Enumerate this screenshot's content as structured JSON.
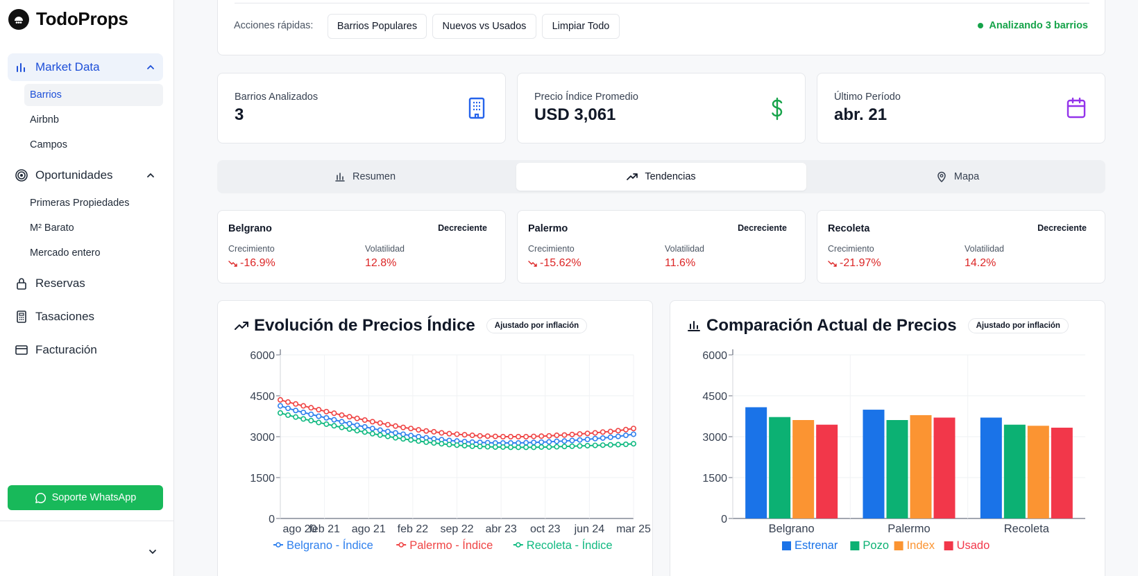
{
  "app": {
    "name": "TodoProps"
  },
  "sidebar": {
    "groups": [
      {
        "label": "Market Data",
        "items": [
          "Barrios",
          "Airbnb",
          "Campos"
        ]
      },
      {
        "label": "Oportunidades",
        "items": [
          "Primeras Propiedades",
          "M² Barato",
          "Mercado entero"
        ]
      },
      {
        "label": "Reservas"
      },
      {
        "label": "Tasaciones"
      },
      {
        "label": "Facturación"
      }
    ],
    "whatsapp_label": "Soporte WhatsApp"
  },
  "quick_actions": {
    "label": "Acciones rápidas:",
    "buttons": [
      "Barrios Populares",
      "Nuevos vs Usados",
      "Limpiar Todo"
    ],
    "status": "Analizando 3 barrios"
  },
  "stats": [
    {
      "label": "Barrios Analizados",
      "value": "3",
      "icon": "building-icon",
      "color": "#2563eb"
    },
    {
      "label": "Precio Índice Promedio",
      "value": "USD 3,061",
      "icon": "dollar-icon",
      "color": "#16a34a"
    },
    {
      "label": "Último Período",
      "value": "abr. 21",
      "icon": "calendar-icon",
      "color": "#9333ea"
    }
  ],
  "tabs": [
    {
      "label": "Resumen",
      "icon": "bar-chart-icon"
    },
    {
      "label": "Tendencias",
      "icon": "trending-up-icon",
      "active": true
    },
    {
      "label": "Mapa",
      "icon": "map-pin-icon"
    }
  ],
  "trends": [
    {
      "name": "Belgrano",
      "status": "Decreciente",
      "growth_label": "Crecimiento",
      "growth": "-16.9%",
      "vol_label": "Volatilidad",
      "volatility": "12.8%"
    },
    {
      "name": "Palermo",
      "status": "Decreciente",
      "growth_label": "Crecimiento",
      "growth": "-15.62%",
      "vol_label": "Volatilidad",
      "volatility": "11.6%"
    },
    {
      "name": "Recoleta",
      "status": "Decreciente",
      "growth_label": "Crecimiento",
      "growth": "-21.97%",
      "vol_label": "Volatilidad",
      "volatility": "14.2%"
    }
  ],
  "charts": {
    "line_title": "Evolución de Precios Índice",
    "bar_title": "Comparación Actual de Precios",
    "badge": "Ajustado por inflación"
  },
  "chart_data": [
    {
      "type": "line",
      "title": "Evolución de Precios Índice",
      "ylim": [
        0,
        6000
      ],
      "yticks": [
        0,
        1500,
        3000,
        4500,
        6000
      ],
      "xticks": [
        "ago 20",
        "feb 21",
        "ago 21",
        "feb 22",
        "sep 22",
        "abr 23",
        "oct 23",
        "jun 24",
        "mar 25"
      ],
      "legend_position": "bottom",
      "series": [
        {
          "name": "Belgrano - Índice",
          "color": "#2f80ed",
          "values": [
            4130,
            4040,
            3960,
            3890,
            3820,
            3750,
            3690,
            3620,
            3550,
            3480,
            3420,
            3360,
            3300,
            3240,
            3190,
            3140,
            3090,
            3040,
            3000,
            2960,
            2920,
            2890,
            2860,
            2840,
            2820,
            2800,
            2790,
            2780,
            2770,
            2770,
            2770,
            2770,
            2780,
            2790,
            2800,
            2810,
            2830,
            2840,
            2860,
            2880,
            2900,
            2930,
            2950,
            2980,
            3010,
            3050,
            3090
          ]
        },
        {
          "name": "Palermo - Índice",
          "color": "#ef4444",
          "values": [
            4350,
            4270,
            4200,
            4130,
            4060,
            3990,
            3920,
            3860,
            3790,
            3730,
            3670,
            3610,
            3550,
            3500,
            3440,
            3390,
            3340,
            3300,
            3250,
            3210,
            3180,
            3140,
            3110,
            3090,
            3070,
            3050,
            3030,
            3020,
            3010,
            3000,
            3000,
            3000,
            3000,
            3010,
            3020,
            3030,
            3050,
            3060,
            3080,
            3100,
            3120,
            3140,
            3170,
            3190,
            3220,
            3260,
            3300
          ]
        },
        {
          "name": "Recoleta - Índice",
          "color": "#10b981",
          "values": [
            3870,
            3790,
            3720,
            3650,
            3590,
            3520,
            3460,
            3400,
            3340,
            3280,
            3220,
            3170,
            3110,
            3060,
            3010,
            2960,
            2920,
            2880,
            2840,
            2800,
            2770,
            2740,
            2710,
            2690,
            2670,
            2650,
            2640,
            2630,
            2620,
            2620,
            2610,
            2610,
            2610,
            2610,
            2620,
            2620,
            2630,
            2640,
            2650,
            2660,
            2670,
            2680,
            2690,
            2700,
            2710,
            2720,
            2740
          ]
        }
      ]
    },
    {
      "type": "bar",
      "title": "Comparación Actual de Precios",
      "ylim": [
        0,
        6000
      ],
      "yticks": [
        0,
        1500,
        3000,
        4500,
        6000
      ],
      "categories": [
        "Belgrano",
        "Palermo",
        "Recoleta"
      ],
      "legend_position": "bottom",
      "series": [
        {
          "name": "Estrenar",
          "color": "#1a73e8",
          "values": [
            4080,
            3990,
            3700
          ]
        },
        {
          "name": "Pozo",
          "color": "#0cb173",
          "values": [
            3720,
            3610,
            3440
          ]
        },
        {
          "name": "Index",
          "color": "#fb9432",
          "values": [
            3610,
            3790,
            3400
          ]
        },
        {
          "name": "Usado",
          "color": "#f2374a",
          "values": [
            3440,
            3700,
            3330
          ]
        }
      ]
    }
  ]
}
